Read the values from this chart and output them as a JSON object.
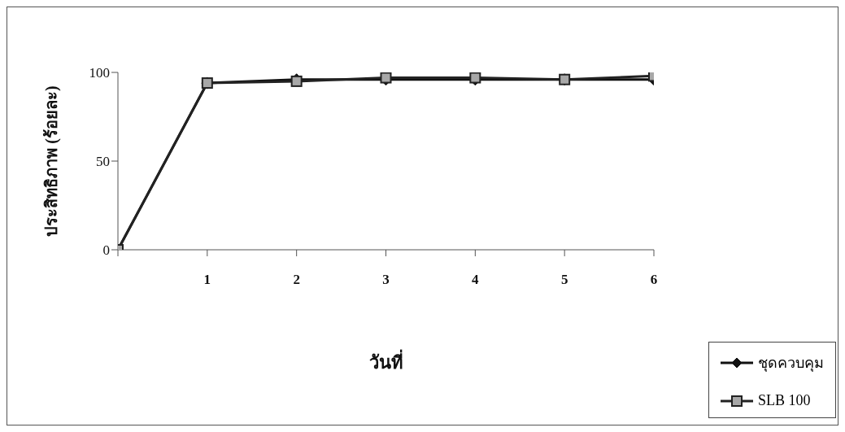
{
  "chart_data": {
    "type": "line",
    "xlabel": "วันที่",
    "ylabel": "ประสิทธิภาพ (ร้อยละ)",
    "x": [
      0,
      1,
      2,
      3,
      4,
      5,
      6
    ],
    "series": [
      {
        "name": "ชุดควบคุม",
        "color": "#111111",
        "marker": "diamond",
        "values": [
          0,
          94,
          96,
          96,
          96,
          96,
          96
        ]
      },
      {
        "name": "SLB 100",
        "color": "#222222",
        "marker": "square",
        "values": [
          0,
          94,
          95,
          97,
          97,
          96,
          98
        ]
      }
    ],
    "xlim": [
      0,
      6
    ],
    "xticks": [
      {
        "value": 0,
        "label": null
      },
      1,
      2,
      3,
      4,
      5,
      6
    ],
    "ylim": [
      0,
      100
    ],
    "yticks": [
      0,
      50,
      100
    ],
    "legend": "bottom right"
  }
}
